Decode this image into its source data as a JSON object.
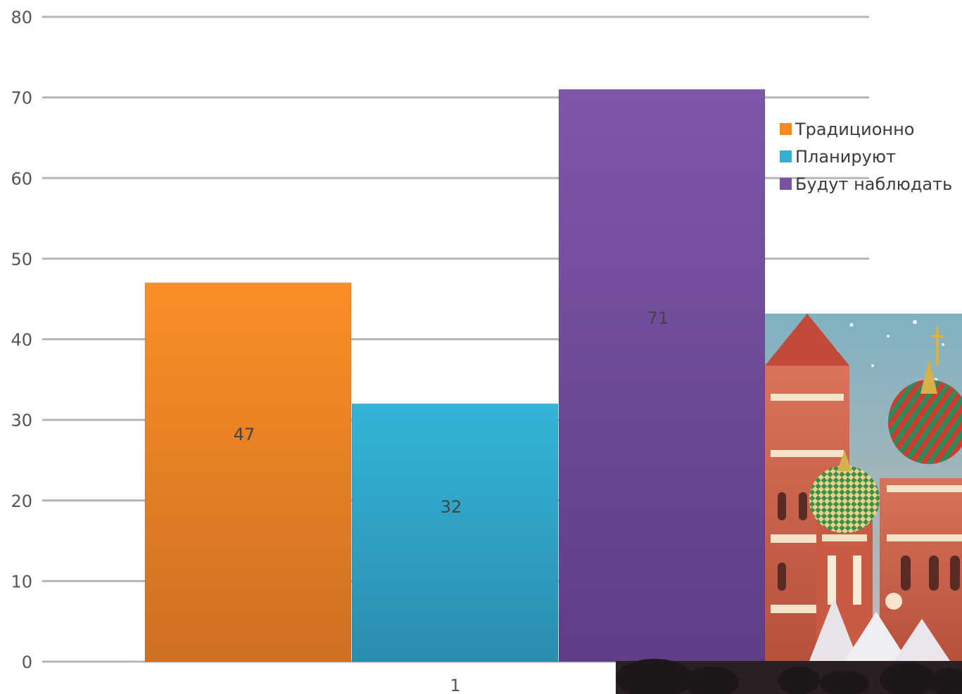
{
  "chart_data": {
    "type": "bar",
    "categories": [
      "1"
    ],
    "series": [
      {
        "name": "Традиционно",
        "values": [
          47
        ],
        "color": "#f58a25"
      },
      {
        "name": "Планируют",
        "values": [
          32
        ],
        "color": "#2fb0d4"
      },
      {
        "name": "Будут наблюдать",
        "values": [
          71
        ],
        "color": "#7a52a4"
      }
    ],
    "ylim": [
      0,
      80
    ],
    "yticks": [
      "0",
      "10",
      "20",
      "30",
      "40",
      "50",
      "60",
      "70",
      "80"
    ],
    "data_labels": [
      "47",
      "32",
      "71"
    ],
    "grid": true,
    "legend_position": "right"
  },
  "photo": {
    "subject": "St. Basil's Cathedral at night, decorated with festive lights",
    "icon": "cathedral-photo"
  }
}
